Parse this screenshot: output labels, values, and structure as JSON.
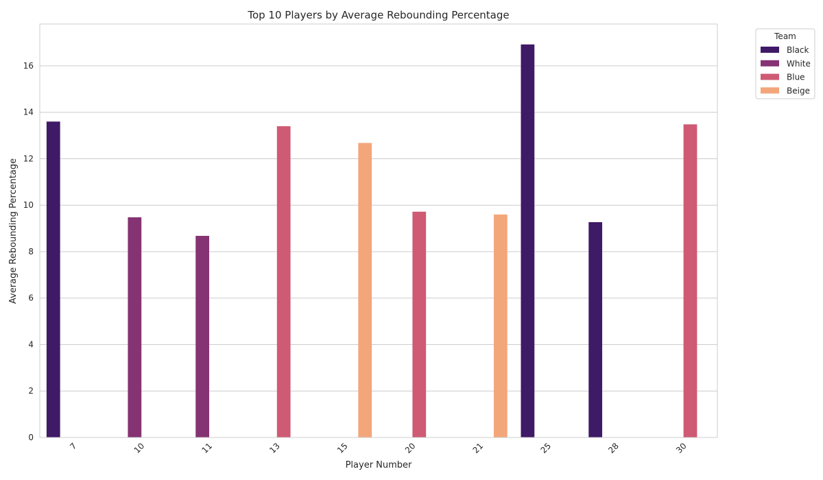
{
  "chart_data": {
    "type": "bar",
    "title": "Top 10 Players by Average Rebounding Percentage",
    "xlabel": "Player Number",
    "ylabel": "Average Rebounding Percentage",
    "categories": [
      "7",
      "10",
      "11",
      "13",
      "15",
      "20",
      "21",
      "25",
      "28",
      "30"
    ],
    "ylim": [
      0,
      17.8
    ],
    "yticks": [
      0,
      2,
      4,
      6,
      8,
      10,
      12,
      14,
      16
    ],
    "grid": "horizontal",
    "legend": {
      "title": "Team",
      "placement": "outside-top-right"
    },
    "series": [
      {
        "name": "Black",
        "color": "#3f1a67",
        "values": [
          13.6,
          null,
          null,
          null,
          null,
          null,
          null,
          16.92,
          9.27,
          null
        ]
      },
      {
        "name": "White",
        "color": "#853373",
        "values": [
          null,
          9.48,
          8.68,
          null,
          null,
          null,
          null,
          null,
          null,
          null
        ]
      },
      {
        "name": "Blue",
        "color": "#cf5a74",
        "values": [
          null,
          null,
          null,
          13.4,
          null,
          9.72,
          null,
          null,
          null,
          13.48
        ]
      },
      {
        "name": "Beige",
        "color": "#f3a67a",
        "values": [
          null,
          null,
          null,
          null,
          12.68,
          null,
          9.6,
          null,
          null,
          null
        ]
      }
    ]
  }
}
